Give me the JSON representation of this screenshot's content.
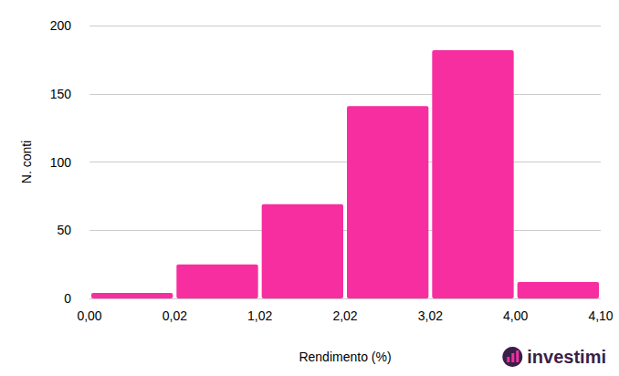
{
  "chart_data": {
    "type": "histogram",
    "x_label": "Rendimento (%)",
    "y_label": "N. conti",
    "bins": [
      {
        "value": 0,
        "label": "0,00"
      },
      {
        "value": 0.02,
        "label": "0,02"
      },
      {
        "value": 1.02,
        "label": "1,02"
      },
      {
        "value": 2.02,
        "label": "2,02"
      },
      {
        "value": 3.02,
        "label": "3,02"
      },
      {
        "value": 4.0,
        "label": "4,00"
      },
      {
        "value": 4.1,
        "label": "4,10"
      }
    ],
    "values": [
      4,
      25,
      69,
      141,
      182,
      12
    ],
    "color": "#f72ea0",
    "ylim": [
      0,
      200
    ],
    "yticks": [
      0,
      50,
      100,
      150,
      200
    ],
    "grid": true,
    "logo": "investimi"
  }
}
